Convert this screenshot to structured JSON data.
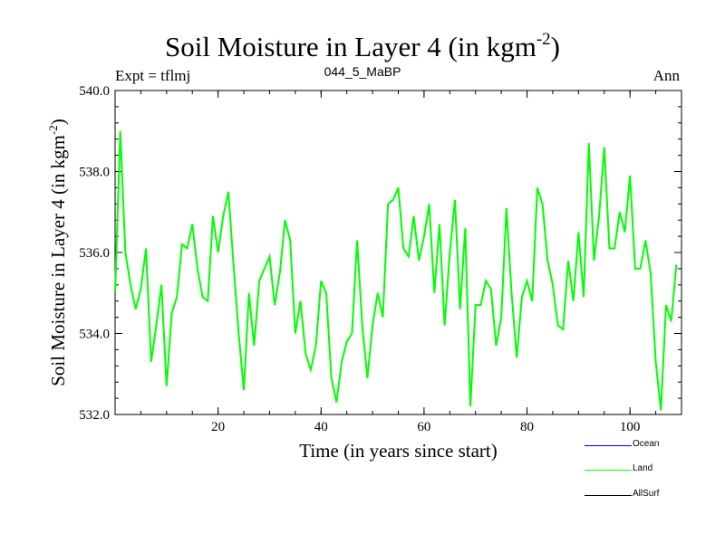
{
  "title": {
    "main": "Soil Moisture in Layer 4 (in kgm",
    "sup": "-2",
    "close": ")"
  },
  "header": {
    "left": "Expt = tflmj",
    "center": "044_5_MaBP",
    "right": "Ann"
  },
  "chart_data": {
    "type": "line",
    "title": "Soil Moisture in Layer 4 (in kgm-2)",
    "xlabel": "Time (in years since start)",
    "ylabel": "Soil Moisture in Layer 4 (in kgm-2)",
    "xlim": [
      0,
      110
    ],
    "ylim": [
      532.0,
      540.0
    ],
    "xticks": [
      20,
      40,
      60,
      80,
      100
    ],
    "yticks": [
      "532.0",
      "534.0",
      "536.0",
      "538.0",
      "540.0"
    ],
    "series": [
      {
        "name": "Ocean",
        "color": "#0000ff",
        "values": []
      },
      {
        "name": "Land",
        "color": "#00ff00",
        "x_start": 0,
        "x_step": 1,
        "values": [
          535.0,
          539.0,
          536.0,
          535.2,
          534.6,
          535.1,
          536.1,
          533.3,
          534.2,
          535.2,
          532.7,
          534.5,
          534.9,
          536.2,
          536.1,
          536.7,
          535.6,
          534.9,
          534.8,
          536.9,
          536.0,
          536.9,
          537.5,
          535.7,
          534.0,
          532.6,
          535.0,
          533.7,
          535.3,
          535.6,
          535.9,
          534.7,
          535.5,
          536.8,
          536.3,
          534.0,
          534.8,
          533.5,
          533.1,
          533.7,
          535.3,
          535.0,
          532.9,
          532.3,
          533.3,
          533.8,
          534.0,
          536.3,
          534.2,
          532.9,
          534.2,
          535.0,
          534.4,
          537.2,
          537.3,
          537.6,
          536.1,
          535.9,
          536.9,
          535.8,
          536.4,
          537.2,
          535.0,
          536.7,
          534.2,
          536.0,
          537.3,
          534.6,
          536.6,
          532.2,
          534.7,
          534.7,
          535.3,
          535.1,
          533.7,
          534.4,
          537.1,
          535.0,
          533.4,
          534.9,
          535.3,
          534.8,
          537.6,
          537.2,
          535.8,
          535.2,
          534.2,
          534.1,
          535.8,
          534.8,
          536.5,
          534.9,
          538.7,
          535.8,
          536.9,
          538.6,
          536.1,
          536.1,
          537.0,
          536.5,
          537.9,
          535.6,
          535.6,
          536.3,
          535.5,
          533.3,
          532.1,
          534.7,
          534.3,
          535.7
        ]
      },
      {
        "name": "AllSurf",
        "color": "#000000",
        "values": []
      }
    ]
  }
}
